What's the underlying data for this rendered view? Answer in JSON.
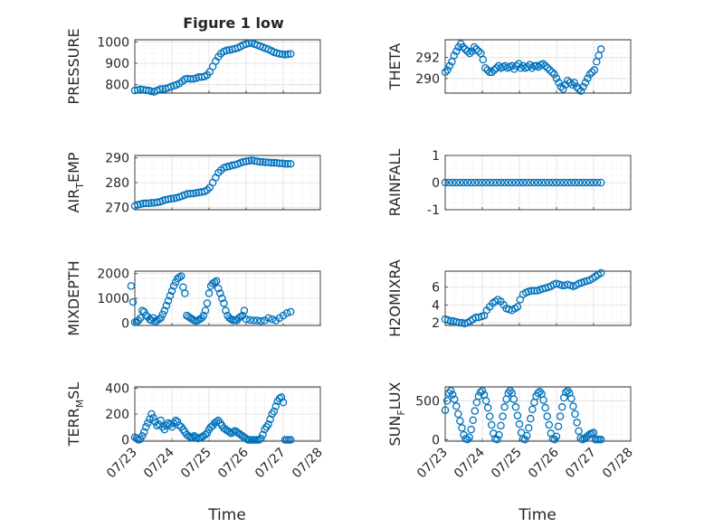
{
  "figure": {
    "title": "Figure 1 low",
    "marker_color": "#0072bd",
    "x_tick_labels": [
      "07/23",
      "07/24",
      "07/25",
      "07/26",
      "07/27",
      "07/28"
    ],
    "x_label_left": "Time",
    "x_label_right": "Time"
  },
  "chart_data": [
    {
      "type": "scatter",
      "id": "pressure",
      "ylabel": "PRESSURE",
      "xlabel": "Time",
      "xlim": [
        "07/23",
        "07/28"
      ],
      "ylim": [
        760,
        1010
      ],
      "yticks": [
        "1000",
        "900",
        "800"
      ],
      "x": [
        0.0,
        0.08,
        0.15,
        0.22,
        0.3,
        0.38,
        0.45,
        0.52,
        0.6,
        0.68,
        0.75,
        0.82,
        0.9,
        0.98,
        1.05,
        1.12,
        1.2,
        1.28,
        1.35,
        1.42,
        1.5,
        1.58,
        1.65,
        1.72,
        1.8,
        1.88,
        1.95,
        2.02,
        2.1,
        2.18,
        2.25,
        2.32,
        2.4,
        2.48,
        2.55,
        2.62,
        2.7,
        2.78,
        2.85,
        2.92,
        3.0,
        3.08,
        3.15,
        3.22,
        3.3,
        3.38,
        3.45,
        3.52,
        3.6,
        3.68,
        3.75,
        3.82,
        3.9,
        3.98,
        4.05,
        4.12,
        4.2
      ],
      "y": [
        772,
        775,
        778,
        776,
        773,
        772,
        768,
        766,
        772,
        778,
        779,
        780,
        785,
        790,
        795,
        798,
        805,
        815,
        825,
        828,
        826,
        827,
        830,
        835,
        835,
        838,
        845,
        860,
        885,
        910,
        930,
        945,
        955,
        960,
        962,
        965,
        968,
        972,
        978,
        985,
        990,
        993,
        995,
        990,
        985,
        980,
        975,
        970,
        965,
        958,
        952,
        948,
        944,
        942,
        940,
        942,
        944
      ]
    },
    {
      "type": "scatter",
      "id": "theta",
      "ylabel": "THETA",
      "xlabel": "Time",
      "xlim": [
        "07/23",
        "07/28"
      ],
      "ylim": [
        288.6,
        293.7
      ],
      "yticks": [
        "292",
        "290"
      ],
      "x": [
        0.0,
        0.06,
        0.12,
        0.18,
        0.24,
        0.3,
        0.36,
        0.42,
        0.48,
        0.54,
        0.6,
        0.66,
        0.72,
        0.78,
        0.84,
        0.9,
        0.96,
        1.02,
        1.08,
        1.14,
        1.2,
        1.26,
        1.32,
        1.38,
        1.44,
        1.5,
        1.56,
        1.62,
        1.68,
        1.74,
        1.8,
        1.86,
        1.92,
        1.98,
        2.04,
        2.1,
        2.16,
        2.22,
        2.28,
        2.34,
        2.4,
        2.46,
        2.52,
        2.58,
        2.64,
        2.7,
        2.76,
        2.82,
        2.88,
        2.94,
        3.0,
        3.06,
        3.12,
        3.18,
        3.24,
        3.3,
        3.36,
        3.42,
        3.48,
        3.54,
        3.6,
        3.66,
        3.72,
        3.78,
        3.84,
        3.9,
        3.96,
        4.02,
        4.08,
        4.14,
        4.2
      ],
      "y": [
        290.6,
        290.8,
        291.2,
        291.6,
        292.2,
        292.6,
        293.0,
        293.3,
        293.0,
        292.8,
        292.6,
        292.4,
        292.6,
        293.0,
        292.8,
        292.6,
        292.4,
        291.8,
        291.0,
        290.8,
        290.6,
        290.6,
        290.8,
        291.0,
        291.2,
        291.0,
        291.1,
        291.2,
        291.0,
        291.1,
        291.2,
        290.9,
        291.2,
        291.4,
        291.0,
        291.2,
        291.0,
        291.1,
        291.3,
        291.0,
        291.2,
        291.2,
        291.1,
        291.3,
        291.4,
        291.2,
        291.0,
        290.8,
        290.6,
        290.4,
        290.0,
        289.6,
        289.2,
        289.0,
        289.4,
        289.8,
        289.6,
        289.4,
        289.6,
        289.2,
        289.0,
        288.8,
        289.2,
        289.6,
        290.0,
        290.4,
        290.6,
        290.8,
        291.6,
        292.2,
        292.8
      ]
    },
    {
      "type": "scatter",
      "id": "air_temp",
      "ylabel": "AIR",
      "ylabel_sub": "T",
      "ylabel_suffix": "EMP",
      "xlabel": "Time",
      "xlim": [
        "07/23",
        "07/28"
      ],
      "ylim": [
        269,
        291
      ],
      "yticks": [
        "290",
        "280",
        "270"
      ],
      "x": [
        0.0,
        0.08,
        0.15,
        0.22,
        0.3,
        0.38,
        0.45,
        0.52,
        0.6,
        0.68,
        0.75,
        0.82,
        0.9,
        0.98,
        1.05,
        1.12,
        1.2,
        1.28,
        1.35,
        1.42,
        1.5,
        1.58,
        1.65,
        1.72,
        1.8,
        1.88,
        1.95,
        2.02,
        2.1,
        2.18,
        2.25,
        2.32,
        2.4,
        2.48,
        2.55,
        2.62,
        2.7,
        2.78,
        2.85,
        2.92,
        3.0,
        3.08,
        3.15,
        3.22,
        3.3,
        3.38,
        3.45,
        3.52,
        3.6,
        3.68,
        3.75,
        3.82,
        3.9,
        3.98,
        4.05,
        4.12,
        4.2
      ],
      "y": [
        270.5,
        271,
        271.2,
        271.5,
        271.6,
        271.6,
        271.8,
        271.8,
        272,
        272.2,
        272.6,
        273,
        273.2,
        273.5,
        273.6,
        273.8,
        274.2,
        274.6,
        275,
        275.4,
        275.5,
        275.6,
        275.8,
        276,
        276.2,
        276.4,
        277,
        278,
        280,
        282,
        284,
        285,
        286,
        286.4,
        286.6,
        287,
        287.2,
        287.6,
        288,
        288.4,
        288.6,
        288.8,
        289,
        288.8,
        288.6,
        288.4,
        288.4,
        288.2,
        288.2,
        288,
        288,
        288,
        287.8,
        287.8,
        287.6,
        287.6,
        287.6
      ]
    },
    {
      "type": "scatter",
      "id": "rainfall",
      "ylabel": "RAINFALL",
      "xlabel": "Time",
      "xlim": [
        "07/23",
        "07/28"
      ],
      "ylim": [
        -1,
        1
      ],
      "yticks": [
        "1",
        "0",
        "-1"
      ],
      "x": [
        0.0,
        0.1,
        0.2,
        0.3,
        0.4,
        0.5,
        0.6,
        0.7,
        0.8,
        0.9,
        1.0,
        1.1,
        1.2,
        1.3,
        1.4,
        1.5,
        1.6,
        1.7,
        1.8,
        1.9,
        2.0,
        2.1,
        2.2,
        2.3,
        2.4,
        2.5,
        2.6,
        2.7,
        2.8,
        2.9,
        3.0,
        3.1,
        3.2,
        3.3,
        3.4,
        3.5,
        3.6,
        3.7,
        3.8,
        3.9,
        4.0,
        4.1,
        4.2
      ],
      "y": [
        0,
        0,
        0,
        0,
        0,
        0,
        0,
        0,
        0,
        0,
        0,
        0,
        0,
        0,
        0,
        0,
        0,
        0,
        0,
        0,
        0,
        0,
        0,
        0,
        0,
        0,
        0,
        0,
        0,
        0,
        0,
        0,
        0,
        0,
        0,
        0,
        0,
        0,
        0,
        0,
        0,
        0,
        0
      ]
    },
    {
      "type": "scatter",
      "id": "mixdepth",
      "ylabel": "MIXDEPTH",
      "xlabel": "Time",
      "xlim": [
        "07/23",
        "07/28"
      ],
      "ylim": [
        -100,
        2100
      ],
      "yticks": [
        "2000",
        "1000",
        "0"
      ],
      "x": [
        -0.1,
        -0.05,
        0.0,
        0.05,
        0.1,
        0.15,
        0.2,
        0.25,
        0.3,
        0.35,
        0.4,
        0.45,
        0.5,
        0.55,
        0.6,
        0.65,
        0.7,
        0.75,
        0.8,
        0.85,
        0.9,
        0.95,
        1.0,
        1.05,
        1.1,
        1.15,
        1.2,
        1.25,
        1.3,
        1.35,
        1.4,
        1.45,
        1.5,
        1.55,
        1.6,
        1.65,
        1.7,
        1.75,
        1.8,
        1.85,
        1.9,
        1.95,
        2.0,
        2.05,
        2.1,
        2.15,
        2.2,
        2.25,
        2.3,
        2.35,
        2.4,
        2.45,
        2.5,
        2.55,
        2.6,
        2.65,
        2.7,
        2.75,
        2.8,
        2.85,
        2.9,
        2.95,
        3.0,
        3.1,
        3.2,
        3.3,
        3.4,
        3.5,
        3.6,
        3.7,
        3.8,
        3.9,
        4.0,
        4.1,
        4.2
      ],
      "y": [
        1500,
        850,
        30,
        40,
        100,
        200,
        500,
        450,
        300,
        250,
        150,
        100,
        200,
        50,
        100,
        150,
        200,
        350,
        500,
        700,
        900,
        1100,
        1300,
        1500,
        1650,
        1800,
        1850,
        1900,
        1450,
        1200,
        300,
        250,
        200,
        150,
        100,
        80,
        100,
        150,
        200,
        300,
        500,
        800,
        1200,
        1500,
        1600,
        1650,
        1700,
        1400,
        1200,
        1000,
        800,
        500,
        300,
        200,
        150,
        100,
        120,
        100,
        200,
        250,
        300,
        500,
        150,
        120,
        100,
        100,
        80,
        100,
        200,
        150,
        100,
        200,
        300,
        400,
        450
      ]
    },
    {
      "type": "scatter",
      "id": "h2omixra",
      "ylabel": "H2OMIXRA",
      "xlabel": "Time",
      "xlim": [
        "07/23",
        "07/28"
      ],
      "ylim": [
        1.7,
        7.8
      ],
      "yticks": [
        "6",
        "4",
        "2"
      ],
      "x": [
        0.0,
        0.08,
        0.15,
        0.22,
        0.3,
        0.38,
        0.45,
        0.52,
        0.6,
        0.68,
        0.75,
        0.82,
        0.9,
        0.98,
        1.05,
        1.12,
        1.2,
        1.28,
        1.35,
        1.42,
        1.5,
        1.58,
        1.65,
        1.72,
        1.8,
        1.88,
        1.95,
        2.02,
        2.1,
        2.18,
        2.25,
        2.32,
        2.4,
        2.48,
        2.55,
        2.62,
        2.7,
        2.78,
        2.85,
        2.92,
        3.0,
        3.08,
        3.15,
        3.22,
        3.3,
        3.38,
        3.45,
        3.52,
        3.6,
        3.68,
        3.75,
        3.82,
        3.9,
        3.98,
        4.05,
        4.12,
        4.2
      ],
      "y": [
        2.4,
        2.3,
        2.2,
        2.2,
        2.1,
        2.0,
        2.0,
        1.9,
        2.0,
        2.2,
        2.4,
        2.6,
        2.6,
        2.7,
        2.8,
        3.4,
        3.8,
        4.2,
        4.4,
        4.6,
        4.4,
        4.0,
        3.6,
        3.5,
        3.4,
        3.6,
        3.8,
        4.6,
        5.2,
        5.4,
        5.5,
        5.6,
        5.6,
        5.6,
        5.7,
        5.8,
        5.9,
        6.0,
        6.1,
        6.3,
        6.4,
        6.3,
        6.2,
        6.2,
        6.3,
        6.2,
        6.1,
        6.2,
        6.4,
        6.5,
        6.6,
        6.7,
        6.8,
        7.0,
        7.2,
        7.4,
        7.6
      ]
    },
    {
      "type": "scatter",
      "id": "terr_msl",
      "ylabel": "TERR",
      "ylabel_sub": "M",
      "ylabel_suffix": "SL",
      "xlabel": "Time",
      "xlim": [
        "07/23",
        "07/28"
      ],
      "ylim": [
        -10,
        410
      ],
      "yticks": [
        "400",
        "200",
        "0"
      ],
      "x": [
        0.0,
        0.05,
        0.1,
        0.15,
        0.2,
        0.25,
        0.3,
        0.35,
        0.4,
        0.45,
        0.5,
        0.55,
        0.6,
        0.65,
        0.7,
        0.75,
        0.8,
        0.85,
        0.9,
        0.95,
        1.0,
        1.05,
        1.1,
        1.15,
        1.2,
        1.25,
        1.3,
        1.35,
        1.4,
        1.45,
        1.5,
        1.55,
        1.6,
        1.65,
        1.7,
        1.75,
        1.8,
        1.85,
        1.9,
        1.95,
        2.0,
        2.05,
        2.1,
        2.15,
        2.2,
        2.25,
        2.3,
        2.35,
        2.4,
        2.45,
        2.5,
        2.55,
        2.6,
        2.65,
        2.7,
        2.75,
        2.8,
        2.85,
        2.9,
        2.95,
        3.0,
        3.05,
        3.1,
        3.15,
        3.2,
        3.25,
        3.3,
        3.35,
        3.4,
        3.45,
        3.5,
        3.55,
        3.6,
        3.65,
        3.7,
        3.75,
        3.8,
        3.85,
        3.9,
        3.95,
        4.0,
        4.05,
        4.1,
        4.15,
        4.2
      ],
      "y": [
        20,
        10,
        0,
        5,
        30,
        60,
        100,
        130,
        160,
        200,
        170,
        140,
        110,
        120,
        150,
        100,
        80,
        110,
        130,
        120,
        100,
        130,
        150,
        140,
        110,
        100,
        80,
        60,
        40,
        30,
        20,
        20,
        30,
        20,
        10,
        15,
        20,
        30,
        40,
        50,
        80,
        100,
        110,
        130,
        140,
        150,
        130,
        110,
        90,
        80,
        70,
        60,
        50,
        60,
        70,
        60,
        50,
        40,
        30,
        20,
        10,
        0,
        0,
        0,
        0,
        0,
        0,
        0,
        10,
        40,
        80,
        100,
        120,
        160,
        200,
        220,
        260,
        300,
        320,
        330,
        290,
        0,
        0,
        0,
        0
      ]
    },
    {
      "type": "scatter",
      "id": "sun_flux",
      "ylabel": "SUN",
      "ylabel_sub": "F",
      "ylabel_suffix": "LUX",
      "xlabel": "Time",
      "xlim": [
        "07/23",
        "07/28"
      ],
      "ylim": [
        -20,
        680
      ],
      "yticks": [
        "500",
        "0"
      ],
      "x": [
        0.0,
        0.05,
        0.1,
        0.15,
        0.2,
        0.25,
        0.3,
        0.35,
        0.4,
        0.45,
        0.5,
        0.55,
        0.6,
        0.65,
        0.7,
        0.75,
        0.8,
        0.85,
        0.9,
        0.95,
        1.0,
        1.05,
        1.1,
        1.15,
        1.2,
        1.25,
        1.3,
        1.35,
        1.4,
        1.45,
        1.5,
        1.55,
        1.6,
        1.65,
        1.7,
        1.75,
        1.8,
        1.85,
        1.9,
        1.95,
        2.0,
        2.05,
        2.1,
        2.15,
        2.2,
        2.25,
        2.3,
        2.35,
        2.4,
        2.45,
        2.5,
        2.55,
        2.6,
        2.65,
        2.7,
        2.75,
        2.8,
        2.85,
        2.9,
        2.95,
        3.0,
        3.05,
        3.1,
        3.15,
        3.2,
        3.25,
        3.3,
        3.35,
        3.4,
        3.45,
        3.5,
        3.55,
        3.6,
        3.65,
        3.7,
        3.75,
        3.8,
        3.85,
        3.9,
        3.95,
        4.0,
        4.05,
        4.1,
        4.15,
        4.2
      ],
      "y": [
        380,
        500,
        600,
        630,
        580,
        520,
        430,
        330,
        240,
        150,
        60,
        10,
        0,
        30,
        130,
        250,
        370,
        480,
        560,
        610,
        630,
        580,
        500,
        410,
        300,
        190,
        80,
        10,
        0,
        60,
        180,
        300,
        420,
        520,
        600,
        630,
        600,
        520,
        420,
        310,
        200,
        90,
        10,
        0,
        50,
        150,
        270,
        390,
        480,
        560,
        600,
        620,
        590,
        510,
        410,
        300,
        190,
        80,
        10,
        0,
        40,
        170,
        300,
        420,
        540,
        610,
        630,
        600,
        530,
        430,
        330,
        220,
        110,
        20,
        0,
        10,
        30,
        50,
        70,
        80,
        90,
        0,
        0,
        0,
        0
      ]
    }
  ]
}
